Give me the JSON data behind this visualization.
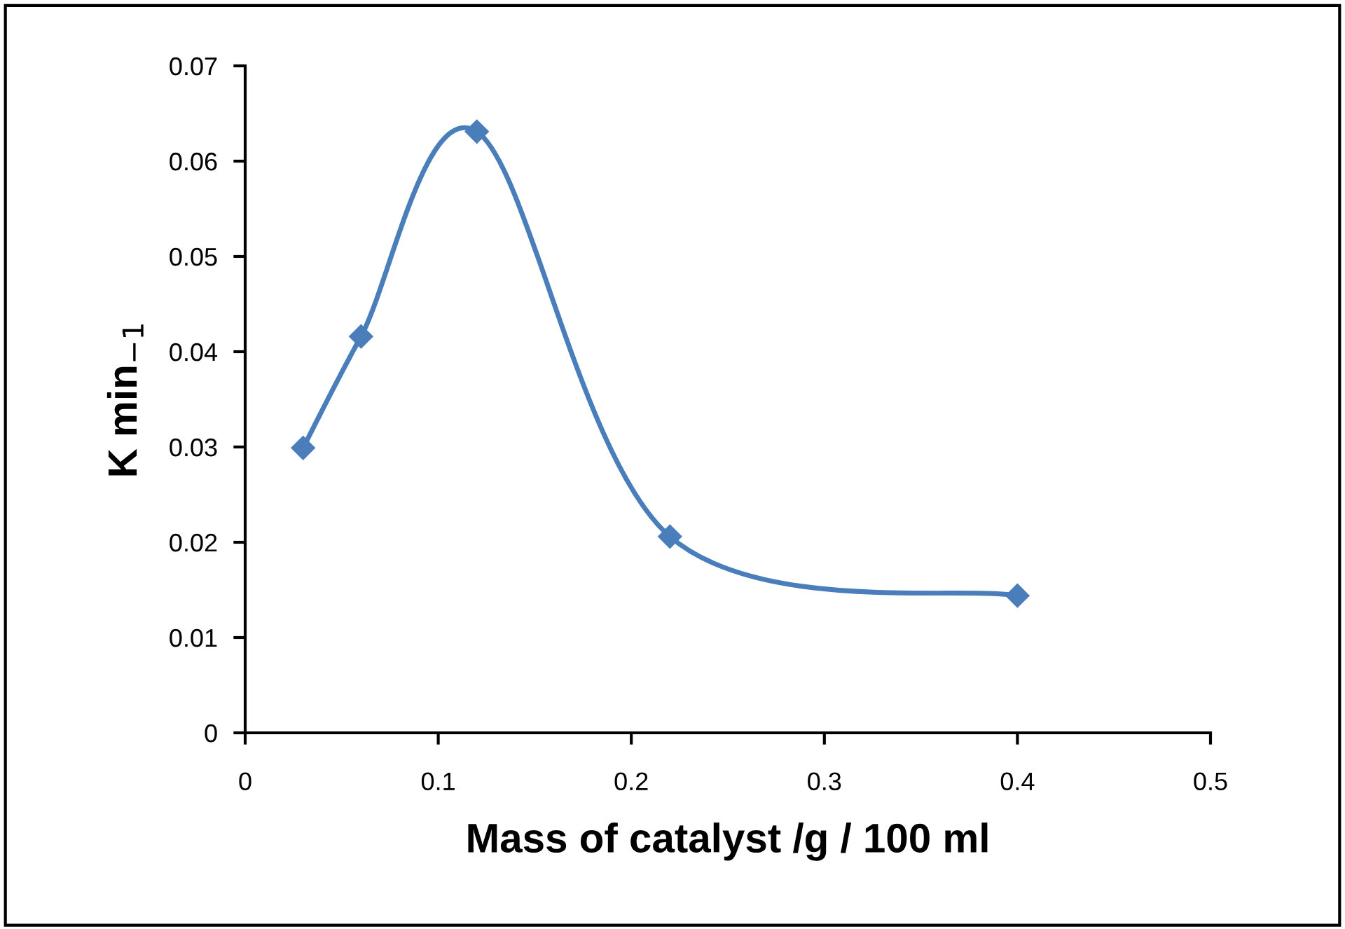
{
  "chart_data": {
    "type": "line",
    "xlabel": "Mass of catalyst /g / 100 ml",
    "ylabel": "K min$_{−1}$",
    "x": [
      0.03,
      0.06,
      0.12,
      0.22,
      0.4
    ],
    "series": [
      {
        "color": "#4a7ebb",
        "values": [
          0.0299,
          0.0416,
          0.0631,
          0.0206,
          0.0144
        ]
      }
    ],
    "xlim": [
      0,
      0.5
    ],
    "xticks": [
      0,
      0.1,
      0.2,
      0.3,
      0.4,
      0.5
    ],
    "ylim": [
      0,
      0.07
    ],
    "yticks": [
      0,
      0.01,
      0.02,
      0.03,
      0.04,
      0.05,
      0.06,
      0.07
    ],
    "marker": "diamond",
    "line_style": "solid",
    "grid": false,
    "legend": false
  }
}
